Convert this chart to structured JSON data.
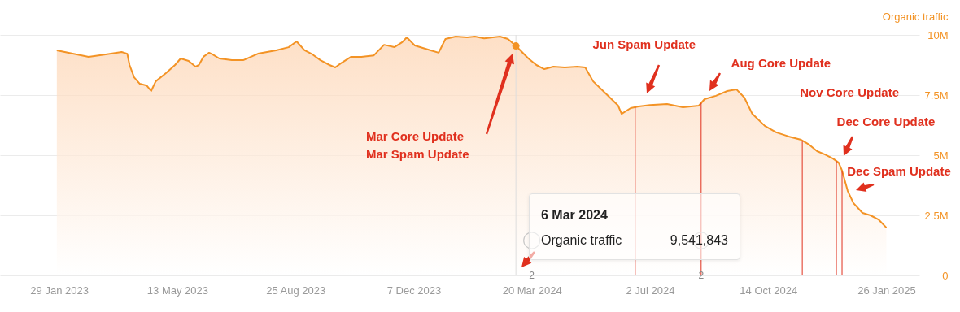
{
  "chart_data": {
    "type": "area",
    "ylabel": "Organic traffic",
    "grid": "y",
    "xlim": [
      "2022-12-08",
      "2025-02-24"
    ],
    "xticks": [
      {
        "value": "2023-01-29",
        "label": "29 Jan 2023"
      },
      {
        "value": "2023-05-13",
        "label": "13 May 2023"
      },
      {
        "value": "2023-08-25",
        "label": "25 Aug 2023"
      },
      {
        "value": "2023-12-07",
        "label": "7 Dec 2023"
      },
      {
        "value": "2024-03-20",
        "label": "20 Mar 2024"
      },
      {
        "value": "2024-07-02",
        "label": "2 Jul 2024"
      },
      {
        "value": "2024-10-14",
        "label": "14 Oct 2024"
      },
      {
        "value": "2025-01-26",
        "label": "26 Jan 2025"
      }
    ],
    "ylim": [
      0,
      10000000
    ],
    "yticks": [
      0,
      {
        "value": 2500000,
        "label": "2.5M"
      },
      {
        "value": 5000000,
        "label": "5M"
      },
      {
        "value": 7500000,
        "label": "7.5M"
      },
      {
        "value": 10000000,
        "label": "10M"
      }
    ],
    "series": [
      {
        "type": "area",
        "color": "#f39325",
        "x": [
          "2023-01-27",
          "2023-02-10",
          "2023-02-24",
          "2023-03-11",
          "2023-03-25",
          "2023-03-30",
          "2023-04-01",
          "2023-04-05",
          "2023-04-10",
          "2023-04-16",
          "2023-04-20",
          "2023-04-24",
          "2023-05-03",
          "2023-05-11",
          "2023-05-16",
          "2023-05-23",
          "2023-05-29",
          "2023-06-01",
          "2023-06-05",
          "2023-06-10",
          "2023-06-13",
          "2023-06-19",
          "2023-06-30",
          "2023-07-10",
          "2023-07-23",
          "2023-08-08",
          "2023-08-19",
          "2023-08-26",
          "2023-09-02",
          "2023-09-09",
          "2023-09-16",
          "2023-09-24",
          "2023-09-29",
          "2023-10-04",
          "2023-10-13",
          "2023-10-22",
          "2023-11-02",
          "2023-11-11",
          "2023-11-20",
          "2023-11-27",
          "2023-12-01",
          "2023-12-08",
          "2023-12-22",
          "2023-12-29",
          "2024-01-04",
          "2024-01-13",
          "2024-01-23",
          "2024-01-30",
          "2024-02-07",
          "2024-02-21",
          "2024-02-28",
          "2024-03-06",
          "2024-03-17",
          "2024-03-24",
          "2024-03-31",
          "2024-04-08",
          "2024-04-18",
          "2024-04-29",
          "2024-05-06",
          "2024-05-13",
          "2024-05-24",
          "2024-06-04",
          "2024-06-07",
          "2024-06-15",
          "2024-06-22",
          "2024-07-02",
          "2024-07-17",
          "2024-07-31",
          "2024-08-14",
          "2024-08-19",
          "2024-08-29",
          "2024-09-08",
          "2024-09-16",
          "2024-09-23",
          "2024-09-30",
          "2024-10-11",
          "2024-10-21",
          "2024-11-01",
          "2024-11-12",
          "2024-11-19",
          "2024-11-26",
          "2024-12-03",
          "2024-12-10",
          "2024-12-15",
          "2024-12-18",
          "2024-12-23",
          "2024-12-28",
          "2025-01-05",
          "2025-01-12",
          "2025-01-19",
          "2025-01-26"
        ],
        "values": [
          9360000,
          9220000,
          9090000,
          9190000,
          9290000,
          9220000,
          8750000,
          8240000,
          7970000,
          7900000,
          7670000,
          8070000,
          8410000,
          8750000,
          9020000,
          8920000,
          8680000,
          8750000,
          9090000,
          9260000,
          9190000,
          9020000,
          8950000,
          8950000,
          9220000,
          9360000,
          9490000,
          9730000,
          9360000,
          9190000,
          8950000,
          8750000,
          8650000,
          8820000,
          9090000,
          9090000,
          9150000,
          9590000,
          9490000,
          9700000,
          9900000,
          9560000,
          9360000,
          9260000,
          9830000,
          9930000,
          9900000,
          9930000,
          9860000,
          9930000,
          9830000,
          9541843,
          9020000,
          8750000,
          8580000,
          8680000,
          8650000,
          8680000,
          8650000,
          8070000,
          7570000,
          7060000,
          6720000,
          6960000,
          7030000,
          7090000,
          7130000,
          6990000,
          7060000,
          7330000,
          7470000,
          7670000,
          7740000,
          7400000,
          6720000,
          6220000,
          5950000,
          5780000,
          5640000,
          5440000,
          5170000,
          5030000,
          4860000,
          4690000,
          4360000,
          3510000,
          3010000,
          2600000,
          2500000,
          2330000,
          1990000
        ]
      },
      {
        "type": "scatter",
        "color": "#f39325",
        "marker": "circle",
        "x": [
          "2024-03-06"
        ],
        "values": [
          9541843
        ]
      }
    ],
    "ref_lines": [
      {
        "axis": "x",
        "value": "2024-03-06",
        "color": "#dddddd"
      },
      {
        "axis": "x",
        "value": "2024-06-19",
        "label": "Jun Spam Update",
        "color": "#e0301e"
      },
      {
        "axis": "x",
        "value": "2024-08-16",
        "label": "Aug Core Update",
        "color": "#e0301e"
      },
      {
        "axis": "x",
        "value": "2024-11-13",
        "label": "Nov Core Update",
        "color": "#e0301e"
      },
      {
        "axis": "x",
        "value": "2024-12-13",
        "label": "Dec Core Update",
        "color": "#e0301e"
      },
      {
        "axis": "x",
        "value": "2024-12-18",
        "label": "Dec Spam Update",
        "color": "#e0301e"
      }
    ],
    "annotations": [
      "Mar Core Update",
      "Mar Spam Update",
      "6 Mar 2024",
      "Organic traffic",
      "9,541,843",
      {
        "text": "2",
        "x": "2024-03-20",
        "y": 0
      },
      {
        "text": "2",
        "x": "2024-08-16",
        "y": 0
      }
    ]
  }
}
